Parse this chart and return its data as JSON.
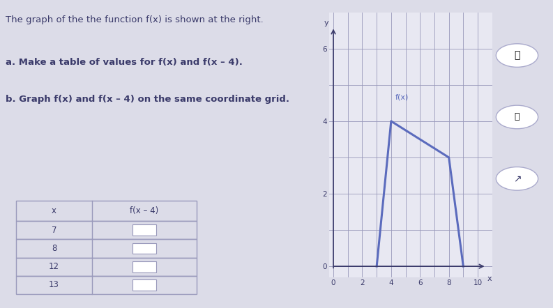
{
  "text_top": "The graph of the the function f(x) is shown at the right.",
  "text_a": "a. Make a table of values for f(x) and f(x – 4).",
  "text_b": "b. Graph f(x) and f(x – 4) on the same coordinate grid.",
  "fx_points": [
    [
      3,
      0
    ],
    [
      4,
      4
    ],
    [
      8,
      3
    ],
    [
      9,
      0
    ]
  ],
  "fx_label": "f(x)",
  "fx_color": "#5b6bbd",
  "graph_xlim": [
    -0.3,
    11
  ],
  "graph_ylim": [
    -0.3,
    7
  ],
  "graph_xticks": [
    0,
    2,
    4,
    6,
    8,
    10
  ],
  "graph_yticks": [
    0,
    2,
    4,
    6
  ],
  "xlabel": "x",
  "ylabel": "y",
  "table_x_values": [
    "7",
    "8",
    "12",
    "13"
  ],
  "table_col1": "x",
  "table_col2": "f(x – 4)",
  "bg_color": "#dcdce8",
  "text_color": "#3a3a6a",
  "grid_color": "#9999bb",
  "line_color": "#5b6bbd",
  "graph_bg": "#e8e8f2"
}
